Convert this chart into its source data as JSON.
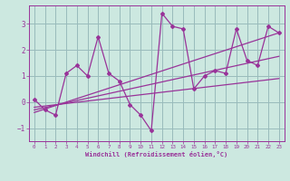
{
  "xlabel": "Windchill (Refroidissement éolien,°C)",
  "bg_color": "#cce8e0",
  "line_color": "#993399",
  "grid_color": "#99bbbb",
  "xlim": [
    -0.5,
    23.5
  ],
  "ylim": [
    -1.5,
    3.7
  ],
  "yticks": [
    -1,
    0,
    1,
    2,
    3
  ],
  "xticks": [
    0,
    1,
    2,
    3,
    4,
    5,
    6,
    7,
    8,
    9,
    10,
    11,
    12,
    13,
    14,
    15,
    16,
    17,
    18,
    19,
    20,
    21,
    22,
    23
  ],
  "series1_x": [
    0,
    1,
    2,
    3,
    4,
    5,
    6,
    7,
    8,
    9,
    10,
    11,
    12,
    13,
    14,
    15,
    16,
    17,
    18,
    19,
    20,
    21,
    22,
    23
  ],
  "series1_y": [
    0.1,
    -0.3,
    -0.5,
    1.1,
    1.4,
    1.0,
    2.5,
    1.1,
    0.8,
    -0.1,
    -0.5,
    -1.1,
    3.4,
    2.9,
    2.8,
    0.5,
    1.0,
    1.2,
    1.1,
    2.8,
    1.6,
    1.4,
    2.9,
    2.65
  ],
  "series2_x": [
    0,
    23
  ],
  "series2_y": [
    -0.4,
    2.65
  ],
  "series3_x": [
    0,
    23
  ],
  "series3_y": [
    -0.3,
    1.75
  ],
  "series4_x": [
    0,
    23
  ],
  "series4_y": [
    -0.2,
    0.9
  ]
}
